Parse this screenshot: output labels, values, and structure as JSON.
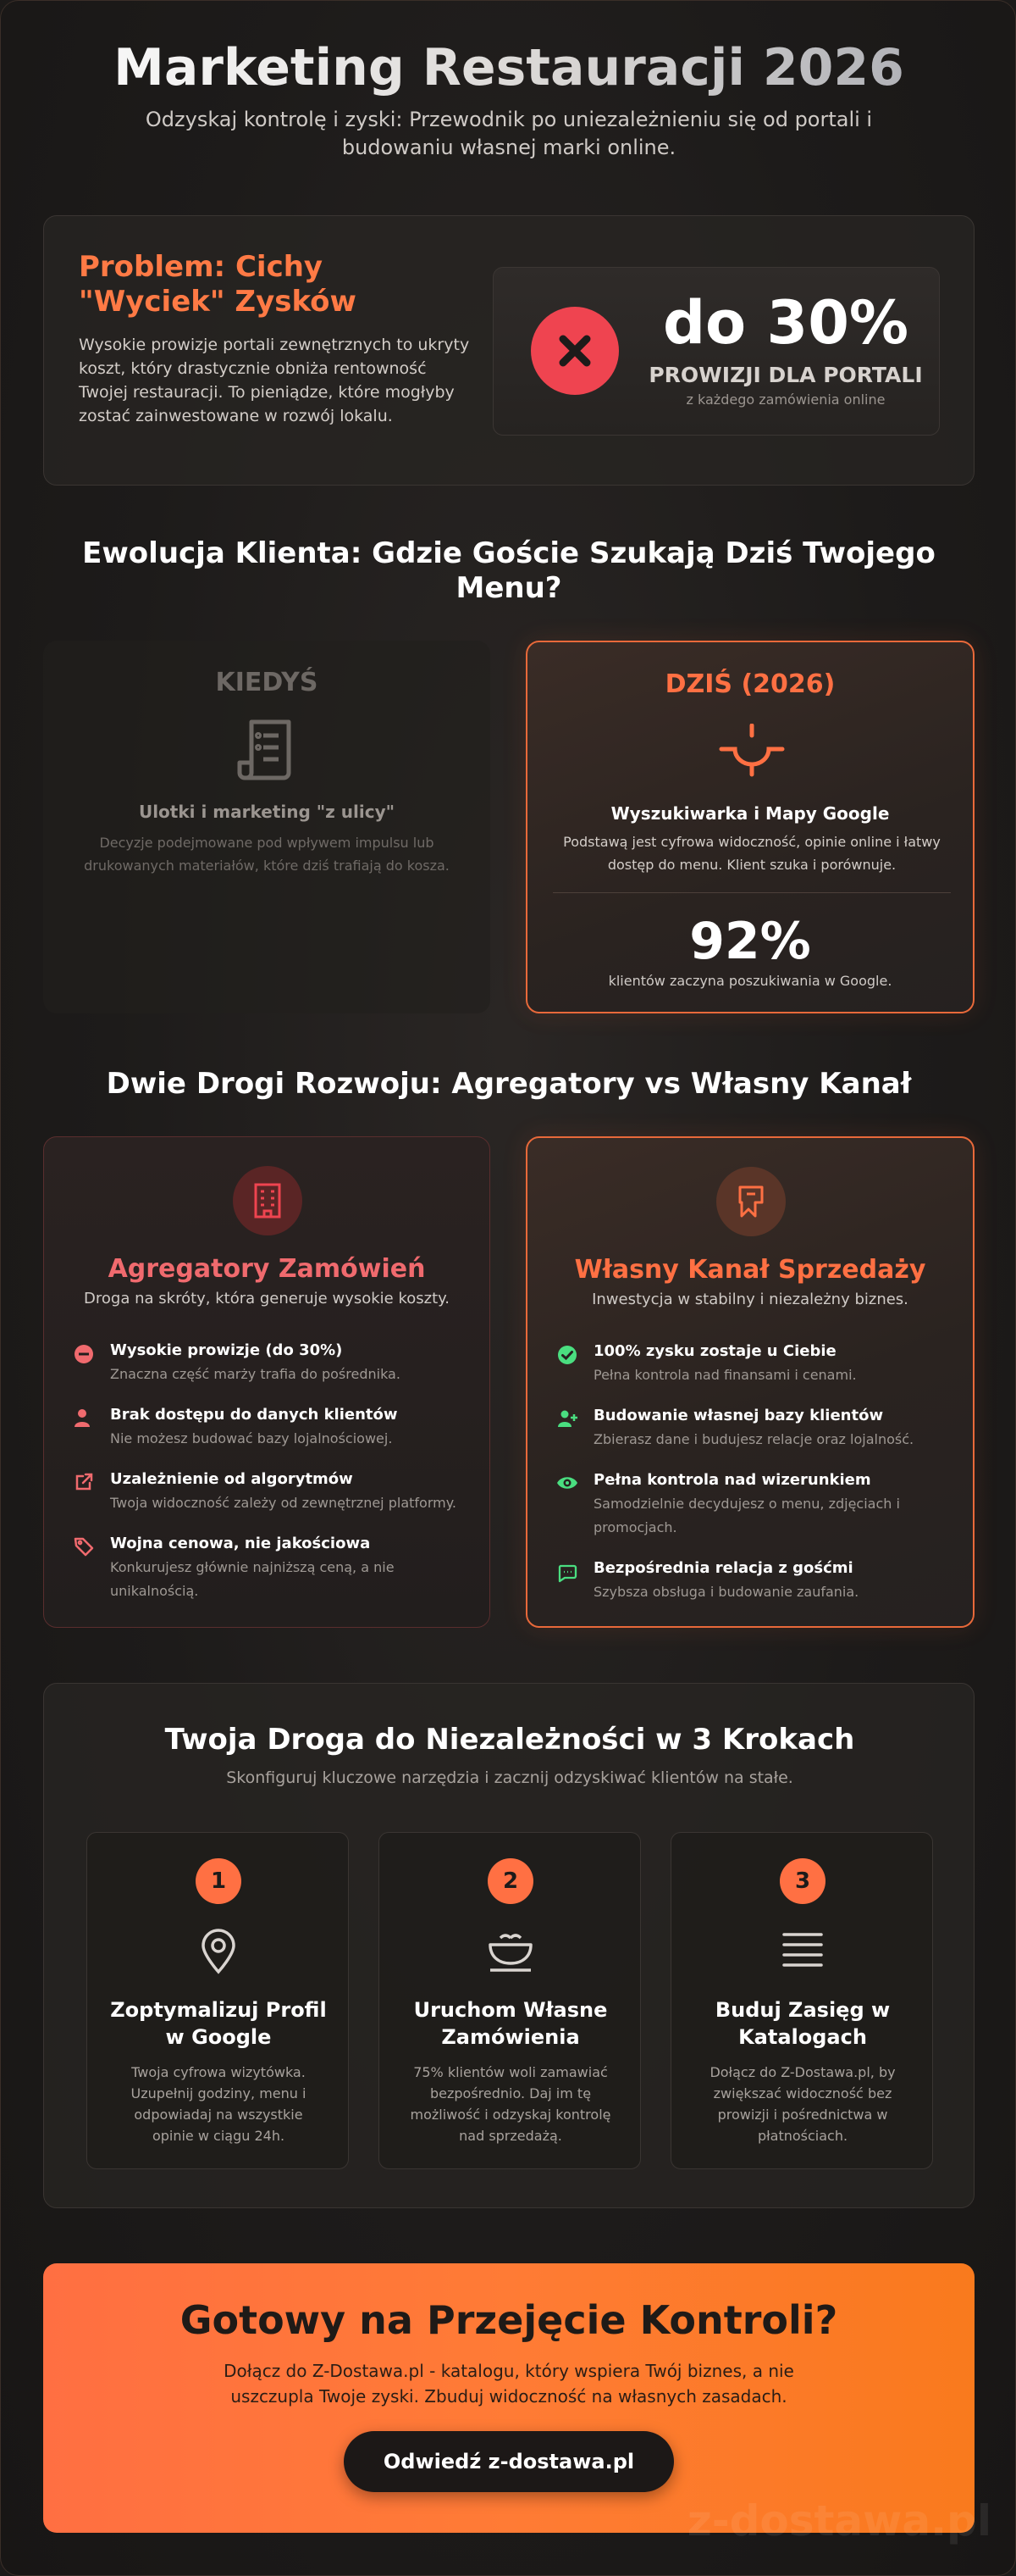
{
  "header": {
    "title": "Marketing Restauracji 2026",
    "subtitle": "Odzyskaj kontrolę i zyski: Przewodnik po uniezależnieniu się od portali i budowaniu własnej marki online."
  },
  "problem": {
    "title": "Problem: Cichy \"Wyciek\" Zysków",
    "text": "Wysokie prowizje portali zewnętrznych to ukryty koszt, który drastycznie obniża rentowność Twojej restauracji. To pieniądze, które mogłyby zostać zainwestowane w rozwój lokalu.",
    "stat_value": "do 30%",
    "stat_label": "PROWIZJI DLA PORTALI",
    "stat_sub": "z każdego zamówienia online"
  },
  "evolution": {
    "heading": "Ewolucja Klienta: Gdzie Goście Szukają Dziś Twojego Menu?",
    "then": {
      "label": "KIEDYŚ",
      "title": "Ulotki i marketing \"z ulicy\"",
      "text": "Decyzje podejmowane pod wpływem impulsu lub drukowanych materiałów, które dziś trafiają do kosza."
    },
    "now": {
      "label": "DZIŚ (2026)",
      "title": "Wyszukiwarka i Mapy Google",
      "text": "Podstawą jest cyfrowa widoczność, opinie online i łatwy dostęp do menu. Klient szuka i porównuje.",
      "stat_value": "92%",
      "stat_text": "klientów zaczyna poszukiwania w Google."
    }
  },
  "paths": {
    "heading": "Dwie Drogi Rozwoju: Agregatory vs Własny Kanał",
    "aggregators": {
      "title": "Agregatory Zamówień",
      "subtitle": "Droga na skróty, która generuje wysokie koszty.",
      "items": [
        {
          "title": "Wysokie prowizje (do 30%)",
          "text": "Znaczna część marży trafia do pośrednika."
        },
        {
          "title": "Brak dostępu do danych klientów",
          "text": "Nie możesz budować bazy lojalnościowej."
        },
        {
          "title": "Uzależnienie od algorytmów",
          "text": "Twoja widoczność zależy od zewnętrznej platformy."
        },
        {
          "title": "Wojna cenowa, nie jakościowa",
          "text": "Konkurujesz głównie najniższą ceną, a nie unikalnością."
        }
      ]
    },
    "own": {
      "title": "Własny Kanał Sprzedaży",
      "subtitle": "Inwestycja w stabilny i niezależny biznes.",
      "items": [
        {
          "title": "100% zysku zostaje u Ciebie",
          "text": "Pełna kontrola nad finansami i cenami."
        },
        {
          "title": "Budowanie własnej bazy klientów",
          "text": "Zbierasz dane i budujesz relacje oraz lojalność."
        },
        {
          "title": "Pełna kontrola nad wizerunkiem",
          "text": "Samodzielnie decydujesz o menu, zdjęciach i promocjach."
        },
        {
          "title": "Bezpośrednia relacja z gośćmi",
          "text": "Szybsza obsługa i budowanie zaufania."
        }
      ]
    }
  },
  "steps": {
    "heading": "Twoja Droga do Niezależności w 3 Krokach",
    "subtitle": "Skonfiguruj kluczowe narzędzia i zacznij odzyskiwać klientów na stałe.",
    "items": [
      {
        "num": "1",
        "title": "Zoptymalizuj Profil w Google",
        "text": "Twoja cyfrowa wizytówka. Uzupełnij godziny, menu i odpowiadaj na wszystkie opinie w ciągu 24h.",
        "icon": "map-pin-icon"
      },
      {
        "num": "2",
        "title": "Uruchom Własne Zamówienia",
        "text": "75% klientów woli zamawiać bezpośrednio. Daj im tę możliwość i odzyskaj kontrolę nad sprzedażą.",
        "icon": "bowl-icon"
      },
      {
        "num": "3",
        "title": "Buduj Zasięg w Katalogach",
        "text": "Dołącz do Z-Dostawa.pl, by zwiększać widoczność bez prowizji i pośrednictwa w płatnościach.",
        "icon": "list-icon"
      }
    ]
  },
  "cta": {
    "title": "Gotowy na Przejęcie Kontroli?",
    "text": "Dołącz do Z-Dostawa.pl - katalogu, który wspiera Twój biznes, a nie uszczupla Twoje zyski. Zbuduj widoczność na własnych zasadach.",
    "button": "Odwiedź z-dostawa.pl"
  },
  "watermark": "z-dostawa.pl",
  "colors": {
    "accent": "#ff7043",
    "danger": "#ef4450",
    "success": "#4ade80",
    "background": "#1d1b1a"
  }
}
